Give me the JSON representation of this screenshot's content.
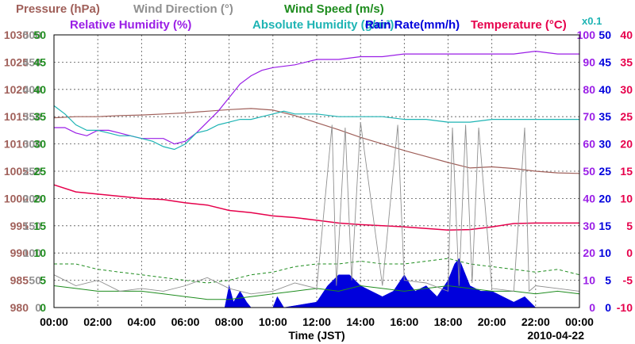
{
  "chart_data": {
    "type": "line",
    "date": "2010-04-22",
    "xlabel": "Time (JST)",
    "x_ticks": [
      "00:00",
      "02:00",
      "04:00",
      "06:00",
      "08:00",
      "10:00",
      "12:00",
      "14:00",
      "16:00",
      "18:00",
      "20:00",
      "22:00",
      "00:00"
    ],
    "x_range_hours": [
      0,
      24
    ],
    "legend": [
      {
        "key": "pressure",
        "label": "Pressure (hPa)",
        "color": "#a0605a"
      },
      {
        "key": "wind_dir",
        "label": "Wind Direction (°)",
        "color": "#909090"
      },
      {
        "key": "wind_speed",
        "label": "Wind Speed (m/s)",
        "color": "#1e8c1e"
      },
      {
        "key": "rel_hum",
        "label": "Relative Humidity (%)",
        "color": "#9a1ee6"
      },
      {
        "key": "abs_hum",
        "label": "Absolute Humidity (g/m³)",
        "color": "#1eb4b4"
      },
      {
        "key": "abs_hum_scale",
        "label": "x0.1",
        "color": "#1eb4b4"
      },
      {
        "key": "rain",
        "label": "Rain Rate(mm/h)",
        "color": "#0000dc"
      },
      {
        "key": "temp",
        "label": "Temperature (°C)",
        "color": "#e6004b"
      }
    ],
    "axes": {
      "pressure": {
        "range": [
          980,
          1030
        ],
        "ticks": [
          "1030",
          "1025",
          "1020",
          "1015",
          "1010",
          "1005",
          "1000",
          "995",
          "990",
          "985",
          "980"
        ],
        "color": "#a0605a"
      },
      "wind_dir": {
        "range": [
          0,
          500
        ],
        "ticks": [
          "500",
          "450",
          "400",
          "350",
          "300",
          "250",
          "200",
          "150",
          "100",
          "50",
          "0"
        ],
        "color": "#909090"
      },
      "wind_speed": {
        "range": [
          0,
          50
        ],
        "ticks": [
          "50",
          "45",
          "40",
          "35",
          "30",
          "25",
          "20",
          "15",
          "10",
          "5",
          "0"
        ],
        "color": "#1e8c1e"
      },
      "rel_hum": {
        "range": [
          0,
          100
        ],
        "ticks": [
          "100",
          "90",
          "80",
          "70",
          "60",
          "50",
          "40",
          "30",
          "20",
          "10",
          "0"
        ],
        "color": "#9a1ee6"
      },
      "rain": {
        "range": [
          0,
          50
        ],
        "ticks": [
          "50",
          "45",
          "40",
          "35",
          "30",
          "25",
          "20",
          "15",
          "10",
          "5",
          "0"
        ],
        "color": "#0000dc"
      },
      "temp": {
        "range": [
          -10,
          40
        ],
        "ticks": [
          "40",
          "35",
          "30",
          "25",
          "20",
          "15",
          "10",
          "5",
          "0",
          "-5",
          "-10"
        ],
        "color": "#e6004b"
      }
    },
    "series": [
      {
        "key": "pressure",
        "axis": "pressure",
        "color": "#a0605a",
        "width": 1.2,
        "x": [
          0,
          1,
          2,
          3,
          4,
          5,
          6,
          7,
          8,
          9,
          10,
          11,
          12,
          13,
          14,
          15,
          16,
          17,
          18,
          19,
          20,
          21,
          22,
          23,
          24
        ],
        "y": [
          1014.8,
          1015.0,
          1015.0,
          1015.2,
          1015.3,
          1015.5,
          1015.7,
          1016.0,
          1016.3,
          1016.5,
          1016.2,
          1015.2,
          1013.9,
          1012.6,
          1011.2,
          1010.0,
          1008.8,
          1007.7,
          1006.6,
          1005.6,
          1005.8,
          1005.5,
          1005.0,
          1004.7,
          1004.6
        ]
      },
      {
        "key": "rel_hum",
        "axis": "rel_hum",
        "color": "#9a1ee6",
        "width": 1.2,
        "x": [
          0,
          0.5,
          1,
          1.5,
          2,
          2.5,
          3,
          3.5,
          4,
          4.5,
          5,
          5.5,
          6,
          6.5,
          7,
          7.5,
          8,
          8.5,
          9,
          9.5,
          10,
          11,
          12,
          13,
          14,
          15,
          16,
          17,
          18,
          19,
          20,
          21,
          22,
          23,
          24
        ],
        "y": [
          66,
          66,
          64,
          63,
          65,
          65,
          64,
          63,
          62,
          62,
          62,
          60,
          61,
          64,
          68,
          72,
          77,
          82,
          85,
          87,
          88,
          89,
          91,
          91,
          92,
          92,
          93,
          93,
          93,
          93,
          93,
          93,
          94,
          93,
          93
        ]
      },
      {
        "key": "abs_hum",
        "axis": "rel_hum",
        "color": "#1eb4b4",
        "width": 1.2,
        "x": [
          0,
          0.5,
          1,
          1.5,
          2,
          2.5,
          3,
          3.5,
          4,
          4.5,
          5,
          5.5,
          6,
          6.5,
          7,
          7.5,
          8,
          8.5,
          9,
          9.5,
          10,
          10.5,
          11,
          12,
          13,
          14,
          15,
          16,
          17,
          18,
          19,
          20,
          21,
          22,
          23,
          24
        ],
        "y": [
          74,
          71,
          67,
          65,
          65,
          64,
          63,
          63,
          62,
          61,
          59,
          58,
          60,
          64,
          65,
          67,
          68,
          69,
          69,
          70,
          71,
          72,
          71,
          71,
          70,
          70,
          70,
          69,
          69,
          68,
          68,
          69,
          69,
          69,
          69,
          69
        ]
      },
      {
        "key": "temp",
        "axis": "temp",
        "color": "#e6004b",
        "width": 1.5,
        "x": [
          0,
          1,
          2,
          3,
          4,
          5,
          6,
          7,
          8,
          9,
          10,
          11,
          12,
          13,
          14,
          15,
          16,
          17,
          18,
          19,
          20,
          21,
          22,
          23,
          24
        ],
        "y": [
          12.5,
          11.2,
          10.8,
          10.4,
          10.0,
          9.8,
          9.2,
          8.8,
          7.8,
          7.4,
          6.8,
          6.5,
          6.0,
          5.5,
          5.2,
          5.0,
          4.8,
          4.5,
          4.2,
          4.3,
          4.8,
          5.4,
          5.5,
          5.5,
          5.5
        ]
      },
      {
        "key": "wind_speed",
        "axis": "wind_speed",
        "color": "#1e8c1e",
        "width": 1.0,
        "x": [
          0,
          1,
          2,
          3,
          4,
          5,
          6,
          7,
          8,
          9,
          10,
          11,
          12,
          13,
          14,
          15,
          16,
          17,
          18,
          19,
          20,
          21,
          22,
          23,
          24
        ],
        "y": [
          4,
          3.5,
          3,
          3,
          3,
          2.5,
          2,
          1.5,
          1.5,
          2,
          2.5,
          3,
          3.5,
          3,
          4,
          3.5,
          3,
          3.5,
          4,
          3.5,
          3,
          3,
          2.5,
          3,
          2.5
        ]
      },
      {
        "key": "wind_speed_gust",
        "axis": "wind_speed",
        "color": "#1e8c1e",
        "width": 1.0,
        "dashed": true,
        "x": [
          0,
          1,
          2,
          3,
          4,
          5,
          6,
          7,
          8,
          9,
          10,
          11,
          12,
          13,
          14,
          15,
          16,
          17,
          18,
          19,
          20,
          21,
          22,
          23,
          24
        ],
        "y": [
          8,
          8,
          7,
          6.5,
          6,
          5.5,
          5,
          4.5,
          5,
          6,
          6.5,
          7.5,
          8,
          8,
          8.5,
          8,
          8,
          8.5,
          9,
          8,
          7.5,
          7,
          6.5,
          7,
          6
        ]
      },
      {
        "key": "wind_dir",
        "axis": "wind_dir",
        "color": "#909090",
        "width": 0.9,
        "x": [
          0,
          1,
          2,
          3,
          4,
          5,
          6,
          7,
          8,
          9,
          10,
          11,
          12,
          12.7,
          12.9,
          13.3,
          13.6,
          14,
          15,
          15.7,
          16,
          17,
          18,
          18.2,
          18.5,
          18.8,
          19.1,
          19.4,
          20,
          21,
          21.5,
          21.7,
          22,
          23,
          24
        ],
        "y": [
          60,
          40,
          50,
          30,
          35,
          30,
          40,
          55,
          35,
          25,
          30,
          45,
          35,
          335,
          40,
          330,
          50,
          340,
          40,
          335,
          50,
          45,
          30,
          330,
          40,
          335,
          45,
          330,
          35,
          30,
          330,
          30,
          40,
          35,
          30
        ]
      }
    ],
    "rain_rate": {
      "axis": "rain",
      "color": "#0000dc",
      "x": [
        7.8,
        8.0,
        8.2,
        8.5,
        8.8,
        9.0,
        10.0,
        10.2,
        10.5,
        12.0,
        12.5,
        13.0,
        13.5,
        14.0,
        14.5,
        15.0,
        15.5,
        16.0,
        16.3,
        16.5,
        17.0,
        17.5,
        18.0,
        18.3,
        18.5,
        18.8,
        19.0,
        19.5,
        20.0,
        20.5,
        21.0,
        21.5,
        22.0
      ],
      "values": [
        0,
        4,
        1,
        3,
        1,
        0,
        0,
        2,
        0,
        1,
        4,
        6,
        6,
        4,
        3,
        2,
        3,
        6,
        4,
        3,
        4,
        2,
        5,
        8,
        9,
        6,
        4,
        3,
        3,
        2,
        1,
        2,
        0
      ]
    }
  }
}
